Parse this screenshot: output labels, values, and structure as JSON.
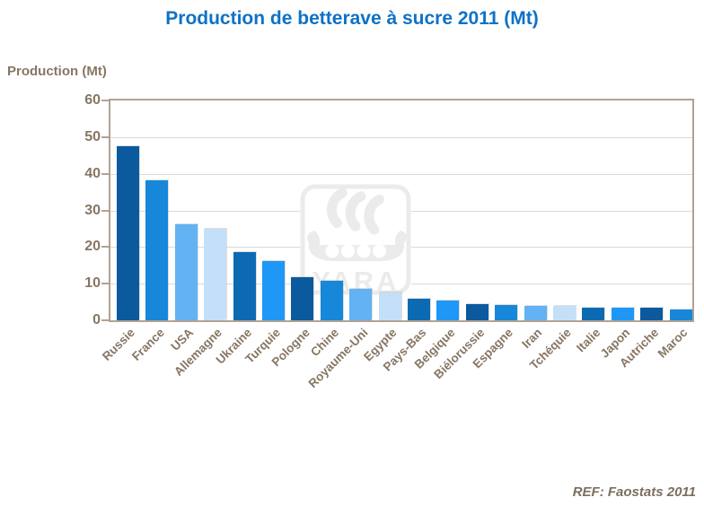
{
  "title": "Production de betterave à sucre 2011 (Mt)",
  "y_axis_title": "Production (Mt)",
  "reference": "REF: Faostats 2011",
  "watermark_text": "YARA",
  "colors": {
    "title": "#0E72C6",
    "axis_text": "#877663",
    "footer_text": "#7B6E5E",
    "plot_border": "#B1A294",
    "gridline": "#D9D9D9",
    "tick_mark": "#B1A294",
    "watermark_gray": "#EBEBEB",
    "palette": [
      "#0B5A9E",
      "#1787D9",
      "#62B2F4",
      "#C4E0F9",
      "#0C6AB3",
      "#1E97F7"
    ]
  },
  "chart_data": {
    "type": "bar",
    "title": "Production de betterave à sucre 2011 (Mt)",
    "ylabel": "Production (Mt)",
    "xlabel": "",
    "ylim": [
      0,
      60
    ],
    "yticks": [
      0,
      10,
      20,
      30,
      40,
      50,
      60
    ],
    "grid": true,
    "legend": "none",
    "categories": [
      "Russie",
      "France",
      "USA",
      "Allemagne",
      "Ukraine",
      "Turquie",
      "Pologne",
      "Chine",
      "Royaume-Uni",
      "Egypte",
      "Pays-Bas",
      "Belgique",
      "Biélorussie",
      "Espagne",
      "Iran",
      "Tchéquie",
      "Italie",
      "Japon",
      "Autriche",
      "Maroc"
    ],
    "values": [
      47.6,
      38.1,
      26.2,
      25.0,
      18.7,
      16.1,
      11.7,
      10.7,
      8.5,
      7.5,
      5.9,
      5.5,
      4.5,
      4.2,
      4.0,
      3.9,
      3.5,
      3.5,
      3.4,
      3.0
    ],
    "bar_color_note": "palette of 6 blues repeating in category order"
  }
}
